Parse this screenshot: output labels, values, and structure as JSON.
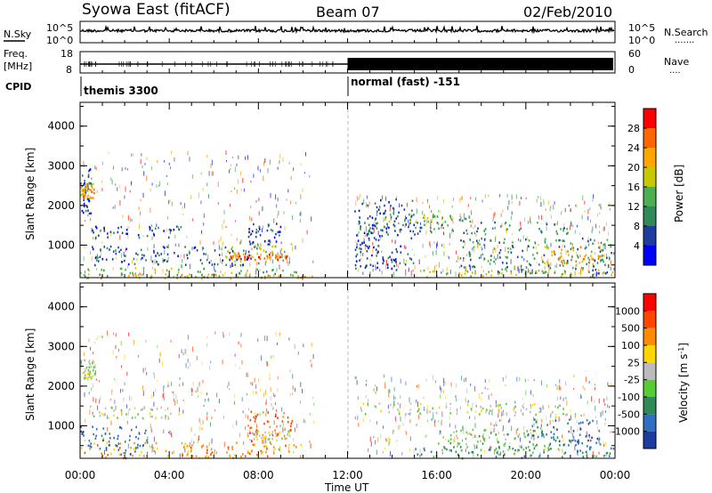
{
  "header": {
    "station": "Syowa East (fitACF)",
    "beam": "Beam 07",
    "date": "02/Feb/2010"
  },
  "left_labels": {
    "nsky": "N.Sky",
    "freq": "Freq.",
    "freq_unit": "[MHz]",
    "cpid": "CPID"
  },
  "right_labels": {
    "nsearch": "N.Search",
    "nsearch_dots": ".......",
    "nave": "Nave",
    "nave_dots": "...."
  },
  "noise_axis": {
    "top": "10^5",
    "bottom": "10^0"
  },
  "freq_axis": {
    "top": "18",
    "bottom": "8"
  },
  "nave_axis": {
    "top": "60",
    "bottom": "0"
  },
  "cpid": {
    "segment1": "themis 3300",
    "segment2": "normal (fast) -151"
  },
  "power_panel": {
    "ylabel": "Slant Range [km]",
    "yticks": [
      "4000",
      "3000",
      "2000",
      "1000"
    ],
    "colorbar_label": "Power [dB]",
    "colorbar_ticks": [
      "28",
      "24",
      "20",
      "16",
      "12",
      "8",
      "4"
    ],
    "colors": [
      "#0000ff",
      "#1e3ca0",
      "#2e8b57",
      "#4caf50",
      "#c8c800",
      "#ffa500",
      "#ff6600",
      "#ff0000"
    ]
  },
  "velocity_panel": {
    "ylabel": "Slant Range [km]",
    "yticks": [
      "4000",
      "3000",
      "2000",
      "1000"
    ],
    "colorbar_label": "Velocity [m s",
    "colorbar_sup": "-1",
    "colorbar_label_end": "]",
    "colorbar_ticks": [
      "1000",
      "500",
      "100",
      "25",
      "-25",
      "-100",
      "-500",
      "-1000"
    ],
    "colors": [
      "#1e3ca0",
      "#2e6fbf",
      "#2e8b57",
      "#55cc33",
      "#bbbbbb",
      "#ffd700",
      "#ff8c00",
      "#ff4500",
      "#ff0000"
    ]
  },
  "xaxis": {
    "label": "Time UT",
    "ticks": [
      "00:00",
      "04:00",
      "08:00",
      "12:00",
      "16:00",
      "20:00",
      "00:00"
    ]
  },
  "chart_data": {
    "type": "heatmap",
    "x_range_hours": [
      0,
      24
    ],
    "y_range_km": [
      180,
      4600
    ],
    "mode_change_hour": 12,
    "power_scatter_regions": [
      {
        "t0": 0.0,
        "t1": 0.5,
        "r0": 1800,
        "r1": 3000,
        "level": 1
      },
      {
        "t0": 0.0,
        "t1": 0.6,
        "r0": 2200,
        "r1": 2600,
        "level": 5
      },
      {
        "t0": 0.5,
        "t1": 4.5,
        "r0": 1200,
        "r1": 1500,
        "level": 1
      },
      {
        "t0": 0.0,
        "t1": 10.0,
        "r0": 200,
        "r1": 450,
        "level": 3
      },
      {
        "t0": 0.0,
        "t1": 10.5,
        "r0": 180,
        "r1": 300,
        "level": 5
      },
      {
        "t0": 0.5,
        "t1": 8.0,
        "r0": 500,
        "r1": 1000,
        "level": 1
      },
      {
        "t0": 6.5,
        "t1": 9.5,
        "r0": 600,
        "r1": 1100,
        "level": 4
      },
      {
        "t0": 6.7,
        "t1": 9.3,
        "r0": 650,
        "r1": 800,
        "level": 6
      },
      {
        "t0": 7.5,
        "t1": 9.0,
        "r0": 1000,
        "r1": 1600,
        "level": 1
      },
      {
        "t0": 12.5,
        "t1": 22.0,
        "r0": 1300,
        "r1": 1600,
        "level": 2
      },
      {
        "t0": 13.5,
        "t1": 17.5,
        "r0": 1600,
        "r1": 1800,
        "level": 3
      },
      {
        "t0": 17.0,
        "t1": 24.0,
        "r0": 300,
        "r1": 1200,
        "level": 2
      },
      {
        "t0": 20.5,
        "t1": 23.5,
        "r0": 500,
        "r1": 1000,
        "level": 5
      },
      {
        "t0": 15.0,
        "t1": 24.0,
        "r0": 200,
        "r1": 400,
        "level": 4
      },
      {
        "t0": 12.3,
        "t1": 15.0,
        "r0": 400,
        "r1": 2200,
        "level": 1
      }
    ],
    "velocity_scatter_regions": [
      {
        "t0": 0.0,
        "t1": 0.6,
        "r0": 2200,
        "r1": 2700,
        "level": 4
      },
      {
        "t0": 0.0,
        "t1": 10.0,
        "r0": 200,
        "r1": 600,
        "level": 6
      },
      {
        "t0": 0.5,
        "t1": 4.5,
        "r0": 1200,
        "r1": 1500,
        "level": 4
      },
      {
        "t0": 7.5,
        "t1": 9.5,
        "r0": 600,
        "r1": 1400,
        "level": 7
      },
      {
        "t0": 7.5,
        "t1": 9.5,
        "r0": 600,
        "r1": 900,
        "level": 4
      },
      {
        "t0": 0.0,
        "t1": 3.0,
        "r0": 300,
        "r1": 1000,
        "level": 1
      },
      {
        "t0": 12.5,
        "t1": 22.0,
        "r0": 1300,
        "r1": 1600,
        "level": 4
      },
      {
        "t0": 15.0,
        "t1": 24.0,
        "r0": 200,
        "r1": 500,
        "level": 2
      },
      {
        "t0": 20.0,
        "t1": 23.5,
        "r0": 500,
        "r1": 1200,
        "level": 1
      },
      {
        "t0": 16.0,
        "t1": 21.0,
        "r0": 400,
        "r1": 1000,
        "level": 3
      }
    ]
  }
}
